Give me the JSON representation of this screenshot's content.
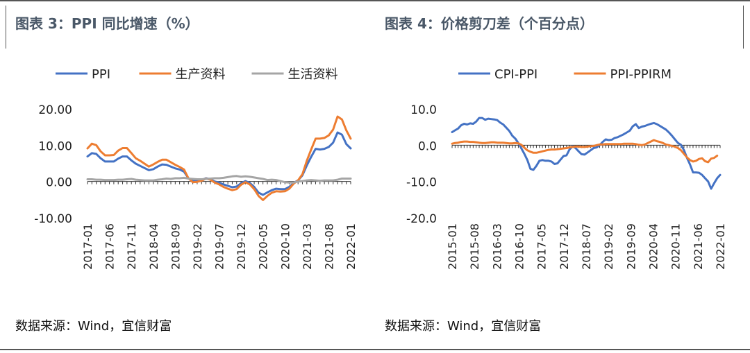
{
  "left": {
    "title": "图表 3：PPI 同比增速（%）",
    "source": "数据来源：Wind，宜信财富"
  },
  "right": {
    "title": "图表 4：价格剪刀差（个百分点）",
    "source": "数据来源：Wind，宜信财富"
  },
  "chart_data": [
    {
      "type": "line",
      "title": "图表 3：PPI 同比增速（%）",
      "x_tick_labels": [
        "2017-01",
        "2017-06",
        "2017-11",
        "2018-04",
        "2018-09",
        "2019-02",
        "2019-07",
        "2019-12",
        "2020-05",
        "2020-10",
        "2021-03",
        "2021-08",
        "2022-01"
      ],
      "y_tick_labels": [
        "20.00",
        "10.00",
        "0.00",
        "-10.00"
      ],
      "ylim": [
        -10,
        20
      ],
      "x_start": "2017-01",
      "x_end": "2022-01",
      "grid": false,
      "legend_position": "top",
      "series": [
        {
          "name": "PPI",
          "color": "#4472C4",
          "values": [
            6.9,
            7.8,
            7.6,
            6.4,
            5.5,
            5.5,
            5.5,
            6.3,
            6.9,
            6.9,
            5.8,
            4.9,
            4.3,
            3.7,
            3.1,
            3.4,
            4.1,
            4.7,
            4.6,
            4.1,
            3.6,
            3.3,
            2.7,
            0.9,
            0.1,
            0.1,
            0.4,
            0.9,
            0.6,
            0.0,
            -0.3,
            -0.8,
            -1.2,
            -1.6,
            -1.4,
            -0.5,
            0.1,
            -0.4,
            -1.5,
            -3.1,
            -3.7,
            -3.0,
            -2.4,
            -2.0,
            -2.1,
            -2.1,
            -1.5,
            -0.4,
            0.3,
            1.7,
            4.4,
            6.8,
            9.0,
            8.8,
            9.0,
            9.5,
            10.7,
            13.5,
            12.9,
            10.3,
            9.1
          ]
        },
        {
          "name": "生产资料",
          "color": "#ED7D31",
          "values": [
            9.1,
            10.4,
            10.0,
            8.3,
            7.2,
            7.2,
            7.3,
            8.5,
            9.2,
            9.2,
            7.8,
            6.4,
            5.7,
            4.9,
            4.1,
            4.7,
            5.4,
            6.0,
            6.0,
            5.3,
            4.6,
            4.0,
            3.3,
            0.9,
            -0.2,
            -0.1,
            0.2,
            0.8,
            0.5,
            -0.3,
            -0.8,
            -1.5,
            -2.0,
            -2.4,
            -2.1,
            -0.9,
            -0.2,
            -0.8,
            -2.1,
            -4.0,
            -5.1,
            -4.0,
            -3.1,
            -2.7,
            -2.8,
            -2.7,
            -2.0,
            -0.6,
            0.3,
            2.0,
            5.7,
            8.8,
            11.8,
            11.8,
            12.0,
            12.7,
            14.3,
            17.9,
            17.1,
            14.1,
            11.8
          ]
        },
        {
          "name": "生活资料",
          "color": "#A5A5A5",
          "values": [
            0.6,
            0.6,
            0.5,
            0.5,
            0.4,
            0.4,
            0.4,
            0.5,
            0.5,
            0.6,
            0.7,
            0.5,
            0.4,
            0.3,
            0.3,
            0.3,
            0.5,
            0.6,
            0.8,
            0.7,
            0.9,
            0.9,
            1.0,
            0.8,
            0.7,
            0.6,
            0.6,
            0.7,
            0.8,
            0.9,
            0.9,
            1.0,
            1.2,
            1.4,
            1.5,
            1.3,
            1.4,
            1.3,
            1.1,
            0.9,
            0.7,
            0.4,
            0.5,
            0.4,
            0.1,
            -0.2,
            -0.3,
            -0.3,
            0.0,
            0.1,
            0.3,
            0.4,
            0.3,
            0.2,
            0.3,
            0.3,
            0.3,
            0.5,
            0.8,
            0.8,
            0.8
          ]
        }
      ]
    },
    {
      "type": "line",
      "title": "图表 4：价格剪刀差（个百分点）",
      "x_tick_labels": [
        "2015-01",
        "2015-08",
        "2016-03",
        "2016-10",
        "2017-05",
        "2017-12",
        "2018-07",
        "2019-02",
        "2019-09",
        "2020-04",
        "2020-11",
        "2021-06",
        "2022-01"
      ],
      "y_tick_labels": [
        "10.0",
        "0.0",
        "-10.0",
        "-20.0"
      ],
      "ylim": [
        -20,
        10
      ],
      "x_start": "2015-01",
      "x_end": "2022-01",
      "grid": false,
      "legend_position": "top",
      "series": [
        {
          "name": "CPI-PPI",
          "color": "#4472C4",
          "values": [
            3.6,
            4.1,
            4.6,
            5.5,
            5.9,
            5.7,
            6.0,
            5.9,
            6.5,
            7.5,
            7.5,
            7.0,
            7.3,
            7.2,
            7.1,
            6.9,
            6.2,
            5.7,
            4.8,
            3.9,
            2.6,
            1.8,
            0.6,
            -0.9,
            -2.4,
            -4.1,
            -6.5,
            -6.8,
            -5.7,
            -4.3,
            -4.1,
            -4.3,
            -4.3,
            -4.5,
            -5.2,
            -5.0,
            -4.0,
            -3.0,
            -2.8,
            -1.2,
            -0.3,
            -0.8,
            -1.7,
            -2.5,
            -2.6,
            -2.0,
            -1.4,
            -0.8,
            -0.6,
            0.0,
            0.9,
            1.6,
            1.4,
            1.5,
            2.0,
            2.2,
            2.6,
            3.0,
            3.5,
            4.0,
            5.2,
            5.8,
            4.7,
            5.1,
            5.3,
            5.6,
            5.9,
            6.1,
            5.8,
            5.3,
            4.8,
            4.3,
            3.5,
            2.6,
            1.6,
            0.6,
            0.1,
            -1.4,
            -3.5,
            -5.3,
            -7.5,
            -7.5,
            -7.6,
            -8.2,
            -9.1,
            -10.0,
            -12.0,
            -10.5,
            -9.1,
            -8.2
          ]
        },
        {
          "name": "PPI-PPIRM",
          "color": "#ED7D31",
          "values": [
            0.4,
            0.6,
            0.7,
            0.9,
            1.0,
            1.0,
            0.9,
            0.9,
            0.8,
            0.7,
            0.6,
            0.6,
            0.7,
            0.8,
            0.8,
            0.7,
            0.7,
            0.7,
            0.6,
            0.5,
            0.5,
            0.6,
            0.5,
            0.1,
            -0.7,
            -1.4,
            -1.8,
            -2.1,
            -2.1,
            -1.9,
            -1.7,
            -1.5,
            -1.3,
            -1.2,
            -1.2,
            -1.1,
            -1.0,
            -0.9,
            -0.8,
            -0.6,
            -0.5,
            -0.4,
            -0.4,
            -0.5,
            -0.5,
            -0.4,
            -0.3,
            -0.2,
            0.0,
            0.2,
            0.2,
            0.3,
            0.3,
            0.3,
            0.3,
            0.3,
            0.3,
            0.4,
            0.4,
            0.4,
            0.4,
            0.3,
            0.1,
            0.0,
            0.2,
            0.6,
            1.0,
            1.4,
            1.1,
            0.9,
            0.6,
            0.2,
            0.0,
            -0.2,
            -0.4,
            -0.8,
            -1.4,
            -2.4,
            -3.4,
            -4.1,
            -4.5,
            -4.3,
            -3.8,
            -3.6,
            -4.4,
            -4.7,
            -3.7,
            -3.5,
            -2.9
          ]
        }
      ]
    }
  ]
}
